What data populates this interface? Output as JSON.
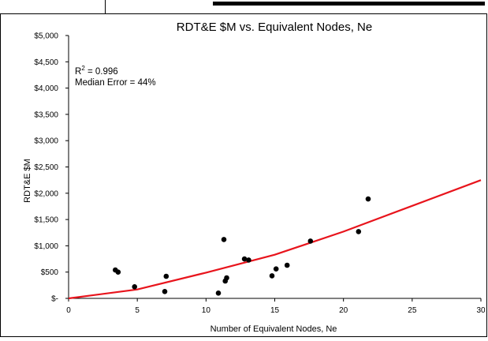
{
  "chart_data": {
    "type": "scatter",
    "title": "RDT&E $M vs. Equivalent Nodes, Ne",
    "xlabel": "Number of Equivalent Nodes, Ne",
    "ylabel": "RDT&E $M",
    "xlim": [
      0,
      30
    ],
    "ylim": [
      0,
      5000
    ],
    "x_ticks": [
      {
        "value": 0,
        "label": "0"
      },
      {
        "value": 5,
        "label": "5"
      },
      {
        "value": 10,
        "label": "10"
      },
      {
        "value": 15,
        "label": "15"
      },
      {
        "value": 20,
        "label": "20"
      },
      {
        "value": 25,
        "label": "25"
      },
      {
        "value": 30,
        "label": "30"
      }
    ],
    "y_ticks": [
      {
        "value": 0,
        "label": "$-"
      },
      {
        "value": 500,
        "label": "$500"
      },
      {
        "value": 1000,
        "label": "$1,000"
      },
      {
        "value": 1500,
        "label": "$1,500"
      },
      {
        "value": 2000,
        "label": "$2,000"
      },
      {
        "value": 2500,
        "label": "$2,500"
      },
      {
        "value": 3000,
        "label": "$3,000"
      },
      {
        "value": 3500,
        "label": "$3,500"
      },
      {
        "value": 4000,
        "label": "$4,000"
      },
      {
        "value": 4500,
        "label": "$4,500"
      },
      {
        "value": 5000,
        "label": "$5,000"
      }
    ],
    "grid": false,
    "legend": "none",
    "annotations": {
      "r_squared_prefix": "R",
      "r_squared_superscript": "2",
      "r_squared_value": " = 0.996",
      "median_error": "Median Error = 44%"
    },
    "series": [
      {
        "type": "scatter",
        "color": "#000000",
        "points": [
          {
            "x": 3.4,
            "y": 540
          },
          {
            "x": 3.6,
            "y": 500
          },
          {
            "x": 4.8,
            "y": 220
          },
          {
            "x": 7.0,
            "y": 130
          },
          {
            "x": 7.1,
            "y": 420
          },
          {
            "x": 10.9,
            "y": 100
          },
          {
            "x": 11.3,
            "y": 1120
          },
          {
            "x": 11.4,
            "y": 330
          },
          {
            "x": 11.5,
            "y": 390
          },
          {
            "x": 12.8,
            "y": 750
          },
          {
            "x": 13.1,
            "y": 730
          },
          {
            "x": 14.8,
            "y": 430
          },
          {
            "x": 15.1,
            "y": 560
          },
          {
            "x": 15.9,
            "y": 630
          },
          {
            "x": 17.6,
            "y": 1090
          },
          {
            "x": 21.1,
            "y": 1270
          },
          {
            "x": 21.8,
            "y": 1890
          }
        ]
      },
      {
        "type": "line",
        "color": "#e8141c",
        "points": [
          {
            "x": 0,
            "y": 0
          },
          {
            "x": 5,
            "y": 170
          },
          {
            "x": 10,
            "y": 490
          },
          {
            "x": 15,
            "y": 830
          },
          {
            "x": 20,
            "y": 1270
          },
          {
            "x": 25,
            "y": 1760
          },
          {
            "x": 30,
            "y": 2250
          }
        ]
      }
    ]
  }
}
